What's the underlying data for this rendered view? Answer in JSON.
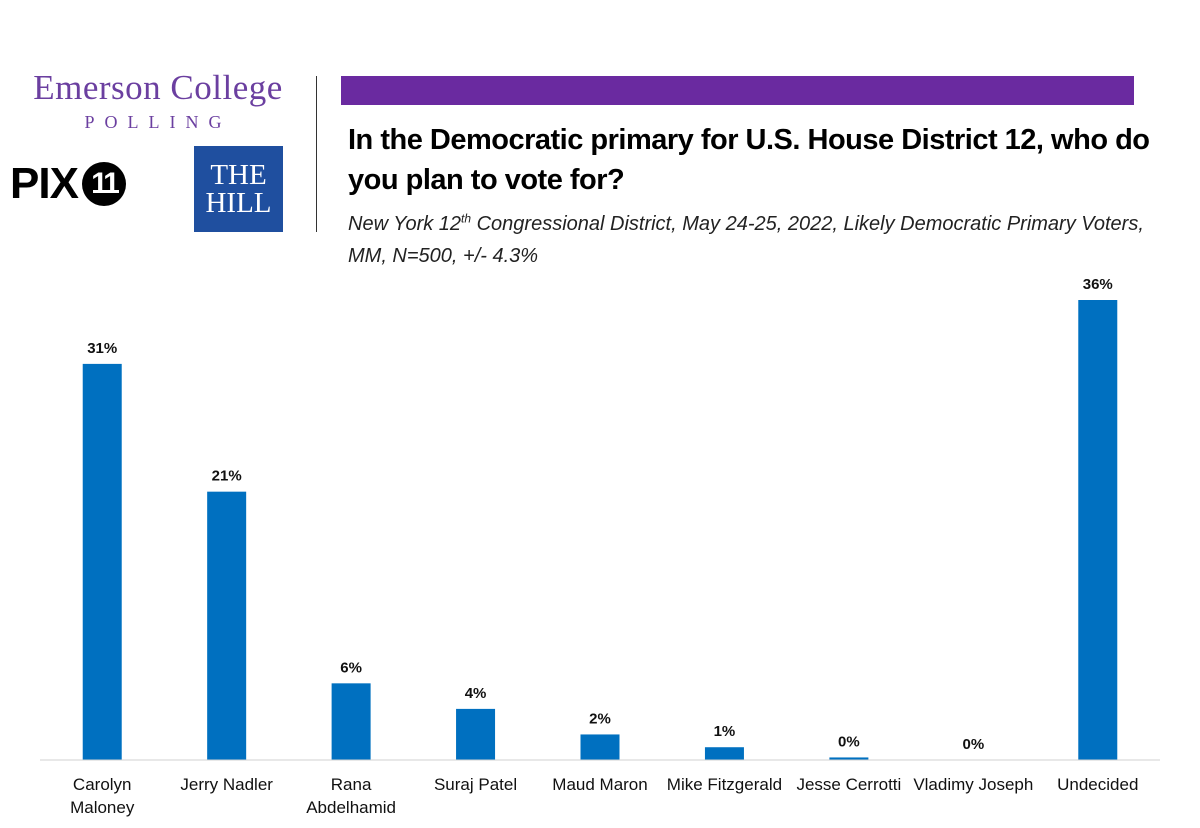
{
  "logos": {
    "emerson_name": "Emerson College",
    "emerson_sub": "POLLING",
    "pix_text": "PIX",
    "pix_number": "11",
    "hill_line1": "THE",
    "hill_line2": "HILL"
  },
  "colors": {
    "bar": "#0070c0",
    "accent_bar": "#6a2aa0",
    "emerson": "#6b3fa0",
    "hill": "#1f4f9f"
  },
  "header": {
    "title": "In the Democratic primary for U.S. House District 12, who do you plan to vote for?",
    "subtitle_pre": "New York 12",
    "subtitle_sup": "th",
    "subtitle_post": " Congressional District, May 24-25, 2022, Likely Democratic Primary Voters, MM, N=500, +/- 4.3%"
  },
  "chart_data": {
    "type": "bar",
    "title": "In the Democratic primary for U.S. House District 12, who do you plan to vote for?",
    "categories": [
      [
        "Carolyn",
        "Maloney"
      ],
      [
        "Jerry Nadler"
      ],
      [
        "Rana",
        "Abdelhamid"
      ],
      [
        "Suraj Patel"
      ],
      [
        "Maud Maron"
      ],
      [
        "Mike Fitzgerald"
      ],
      [
        "Jesse Cerrotti"
      ],
      [
        "Vladimy Joseph"
      ],
      [
        "Undecided"
      ]
    ],
    "values": [
      31,
      21,
      6,
      4,
      2,
      1,
      0.2,
      0,
      36
    ],
    "labels": [
      "31%",
      "21%",
      "6%",
      "4%",
      "2%",
      "1%",
      "0%",
      "0%",
      "36%"
    ],
    "xlabel": "",
    "ylabel": "",
    "ylim": [
      0,
      36
    ],
    "grid": false,
    "legend": "none"
  }
}
